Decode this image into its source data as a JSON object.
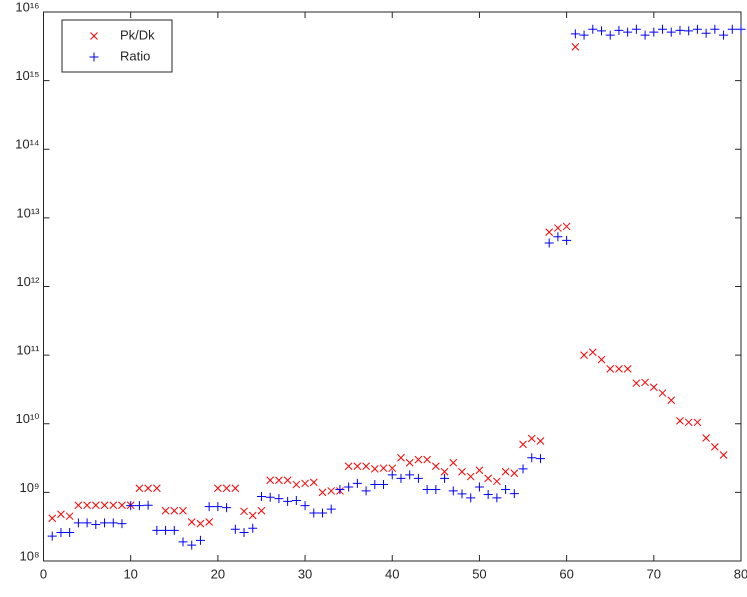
{
  "chart_data": {
    "type": "scatter",
    "x": [
      1,
      2,
      3,
      4,
      5,
      6,
      7,
      8,
      9,
      10,
      11,
      12,
      13,
      14,
      15,
      16,
      17,
      18,
      19,
      20,
      21,
      22,
      23,
      24,
      25,
      26,
      27,
      28,
      29,
      30,
      31,
      32,
      33,
      34,
      35,
      36,
      37,
      38,
      39,
      40,
      41,
      42,
      43,
      44,
      45,
      46,
      47,
      48,
      49,
      50,
      51,
      52,
      53,
      54,
      55,
      56,
      57,
      58,
      59,
      60,
      61,
      62,
      63,
      64,
      65,
      66,
      67,
      68,
      69,
      70,
      71,
      72,
      73,
      74,
      75,
      76,
      77,
      78,
      79,
      80
    ],
    "series": [
      {
        "name": "Pk/Dk",
        "color": "#ff0000",
        "marker": "x",
        "values": [
          420000000.0,
          480000000.0,
          450000000.0,
          650000000.0,
          650000000.0,
          650000000.0,
          650000000.0,
          650000000.0,
          650000000.0,
          650000000.0,
          1150000000.0,
          1150000000.0,
          1150000000.0,
          540000000.0,
          540000000.0,
          540000000.0,
          370000000.0,
          350000000.0,
          370000000.0,
          1150000000.0,
          1150000000.0,
          1150000000.0,
          530000000.0,
          460000000.0,
          540000000.0,
          1500000000.0,
          1500000000.0,
          1500000000.0,
          1300000000.0,
          1350000000.0,
          1400000000.0,
          1000000000.0,
          1050000000.0,
          1050000000.0,
          2400000000.0,
          2400000000.0,
          2400000000.0,
          2200000000.0,
          2250000000.0,
          2250000000.0,
          3200000000.0,
          2700000000.0,
          3000000000.0,
          3000000000.0,
          2400000000.0,
          2000000000.0,
          2700000000.0,
          2000000000.0,
          1700000000.0,
          2100000000.0,
          1600000000.0,
          1450000000.0,
          2000000000.0,
          1900000000.0,
          5000000000.0,
          6100000000.0,
          5600000000.0,
          6200000000000.0,
          7100000000000.0,
          7500000000000.0,
          3100000000000000.0,
          100000000000.0,
          110000000000.0,
          86000000000.0,
          63000000000.0,
          63000000000.0,
          63000000000.0,
          39000000000.0,
          40000000000.0,
          34000000000.0,
          28000000000.0,
          22000000000.0,
          11000000000.0,
          10500000000.0,
          10500000000.0,
          6200000000.0,
          4600000000.0,
          3500000000.0,
          null,
          null
        ]
      },
      {
        "name": "Ratio",
        "color": "#0000ff",
        "marker": "+",
        "values": [
          230000000.0,
          260000000.0,
          260000000.0,
          360000000.0,
          360000000.0,
          340000000.0,
          360000000.0,
          360000000.0,
          350000000.0,
          640000000.0,
          640000000.0,
          650000000.0,
          280000000.0,
          280000000.0,
          280000000.0,
          190000000.0,
          170000000.0,
          200000000.0,
          620000000.0,
          620000000.0,
          600000000.0,
          290000000.0,
          260000000.0,
          300000000.0,
          870000000.0,
          850000000.0,
          810000000.0,
          740000000.0,
          760000000.0,
          640000000.0,
          500000000.0,
          500000000.0,
          570000000.0,
          1100000000.0,
          1200000000.0,
          1350000000.0,
          1050000000.0,
          1300000000.0,
          1300000000.0,
          1800000000.0,
          1600000000.0,
          1800000000.0,
          1600000000.0,
          1100000000.0,
          1100000000.0,
          1600000000.0,
          1050000000.0,
          950000000.0,
          830000000.0,
          1200000000.0,
          930000000.0,
          830000000.0,
          1100000000.0,
          960000000.0,
          2200000000.0,
          3200000000.0,
          3100000000.0,
          4300000000000.0,
          5300000000000.0,
          4700000000000.0,
          4800000000000000.0,
          4600000000000000.0,
          5600000000000000.0,
          5300000000000000.0,
          4600000000000000.0,
          5400000000000000.0,
          5100000000000000.0,
          5600000000000000.0,
          4600000000000000.0,
          5100000000000000.0,
          5600000000000000.0,
          5100000000000000.0,
          5400000000000000.0,
          5300000000000000.0,
          5600000000000000.0,
          4900000000000000.0,
          5600000000000000.0,
          4600000000000000.0,
          5600000000000000.0,
          5600000000000000.0
        ]
      }
    ],
    "xlim": [
      0,
      80
    ],
    "xticks": [
      0,
      10,
      20,
      30,
      40,
      50,
      60,
      70,
      80
    ],
    "ylim": [
      100000000.0,
      1e+16
    ],
    "ylog": true,
    "yticks": [
      {
        "value": 100000000.0,
        "label": "10⁸"
      },
      {
        "value": 1000000000.0,
        "label": "10⁹"
      },
      {
        "value": 10000000000.0,
        "label": "10¹⁰"
      },
      {
        "value": 100000000000.0,
        "label": "10¹¹"
      },
      {
        "value": 1000000000000.0,
        "label": "10¹²"
      },
      {
        "value": 10000000000000.0,
        "label": "10¹³"
      },
      {
        "value": 100000000000000.0,
        "label": "10¹⁴"
      },
      {
        "value": 1000000000000000.0,
        "label": "10¹⁵"
      },
      {
        "value": 1e+16,
        "label": "10¹⁶"
      }
    ],
    "legend": "top-left",
    "grid": false
  }
}
